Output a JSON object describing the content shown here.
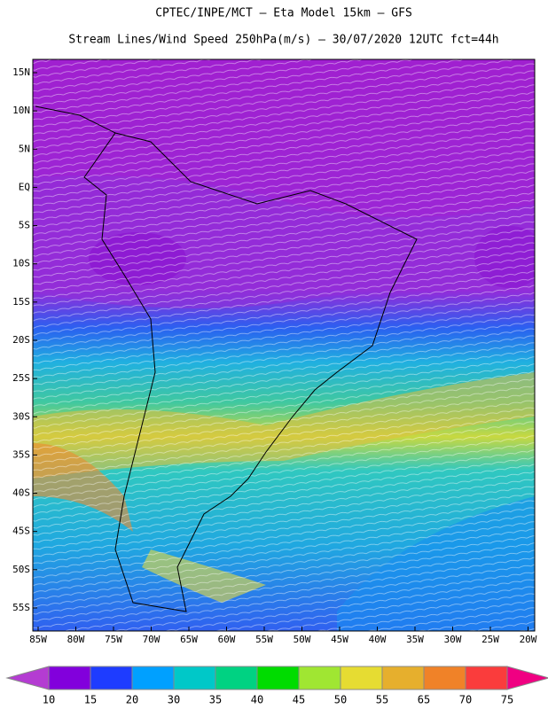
{
  "header": {
    "line1": "CPTEC/INPE/MCT –  Eta Model 15km – GFS",
    "line2": "Stream Lines/Wind Speed 250hPa(m/s) – 30/07/2020 12UTC fct=44h"
  },
  "map": {
    "lat_labels": [
      "15N",
      "10N",
      "5N",
      "EQ",
      "5S",
      "10S",
      "15S",
      "20S",
      "25S",
      "30S",
      "35S",
      "40S",
      "45S",
      "50S",
      "55S"
    ],
    "lon_labels": [
      "85W",
      "80W",
      "75W",
      "70W",
      "65W",
      "60W",
      "55W",
      "50W",
      "45W",
      "40W",
      "35W",
      "30W",
      "25W",
      "20W"
    ]
  },
  "colorbar": {
    "levels": [
      10,
      15,
      20,
      30,
      35,
      40,
      45,
      50,
      55,
      65,
      70,
      75
    ],
    "colors": [
      "#8200dc",
      "#1e3cff",
      "#00a0ff",
      "#00c8c8",
      "#00d282",
      "#00dc00",
      "#a0e632",
      "#e6dc32",
      "#e6af2d",
      "#f08228",
      "#fa3c3c"
    ],
    "under_color": "#b43cd2",
    "over_color": "#f00082"
  }
}
